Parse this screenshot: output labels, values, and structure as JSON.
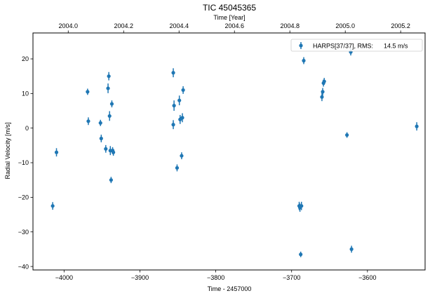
{
  "chart_data": {
    "type": "scatter",
    "title": "TIC 45045365",
    "xlabel": "Time - 2457000",
    "ylabel": "Radial Velocity [m/s]",
    "top_xlabel": "Time [Year]",
    "xlim": [
      -4041,
      -3524
    ],
    "ylim": [
      -41,
      27.5
    ],
    "x_ticks": [
      -4000,
      -3900,
      -3800,
      -3700,
      -3600
    ],
    "x_tick_labels": [
      "−4000",
      "−3900",
      "−3800",
      "−3700",
      "−3600"
    ],
    "y_ticks": [
      20,
      10,
      0,
      -10,
      -20,
      -30,
      -40
    ],
    "y_tick_labels": [
      "20",
      "10",
      "0",
      "−10",
      "−20",
      "−30",
      "−40"
    ],
    "top_ticks": [
      2004.0,
      2004.2,
      2004.4,
      2004.6,
      2004.8,
      2005.0,
      2005.2
    ],
    "top_tick_labels": [
      "2004.0",
      "2004.2",
      "2004.4",
      "2004.6",
      "2004.8",
      "2005.0",
      "2005.2"
    ],
    "legend_position": "top-right",
    "grid": false,
    "series": [
      {
        "name": "HARPS[37/37], RMS:      14.5 m/s",
        "color": "#1f77b4",
        "points": [
          {
            "x": -4015,
            "y": -22.5,
            "err": 1.1
          },
          {
            "x": -4010,
            "y": -7.0,
            "err": 1.2
          },
          {
            "x": -3969,
            "y": 10.5,
            "err": 0.9
          },
          {
            "x": -3968,
            "y": 2.0,
            "err": 1.1
          },
          {
            "x": -3952,
            "y": 1.5,
            "err": 0.9
          },
          {
            "x": -3951,
            "y": -3.0,
            "err": 1.1
          },
          {
            "x": -3945,
            "y": -6.0,
            "err": 1.1
          },
          {
            "x": -3942,
            "y": 11.5,
            "err": 1.4
          },
          {
            "x": -3941,
            "y": 15.0,
            "err": 1.2
          },
          {
            "x": -3940,
            "y": 3.5,
            "err": 1.4
          },
          {
            "x": -3939,
            "y": -6.5,
            "err": 1.3
          },
          {
            "x": -3938,
            "y": -15.0,
            "err": 0.9
          },
          {
            "x": -3937,
            "y": 7.0,
            "err": 1.0
          },
          {
            "x": -3936,
            "y": -6.5,
            "err": 1.0
          },
          {
            "x": -3935,
            "y": -7.0,
            "err": 1.0
          },
          {
            "x": -3856,
            "y": 16.0,
            "err": 1.3
          },
          {
            "x": -3856,
            "y": 1.0,
            "err": 1.3
          },
          {
            "x": -3855,
            "y": 6.5,
            "err": 1.5
          },
          {
            "x": -3851,
            "y": -11.5,
            "err": 1.0
          },
          {
            "x": -3848,
            "y": 8.0,
            "err": 1.4
          },
          {
            "x": -3847,
            "y": 2.5,
            "err": 1.3
          },
          {
            "x": -3845,
            "y": -8.0,
            "err": 1.0
          },
          {
            "x": -3844,
            "y": 3.0,
            "err": 1.3
          },
          {
            "x": -3843,
            "y": 11.0,
            "err": 1.1
          },
          {
            "x": -3690,
            "y": -22.5,
            "err": 1.2
          },
          {
            "x": -3689,
            "y": -23.0,
            "err": 1.2
          },
          {
            "x": -3688,
            "y": -36.5,
            "err": 0.8
          },
          {
            "x": -3687,
            "y": -22.5,
            "err": 1.2
          },
          {
            "x": -3684,
            "y": 19.5,
            "err": 1.0
          },
          {
            "x": -3660,
            "y": 9.0,
            "err": 1.2
          },
          {
            "x": -3659,
            "y": 10.5,
            "err": 1.1
          },
          {
            "x": -3658,
            "y": 13.0,
            "err": 1.0
          },
          {
            "x": -3657,
            "y": 13.5,
            "err": 1.0
          },
          {
            "x": -3627,
            "y": -2.0,
            "err": 0.8
          },
          {
            "x": -3622,
            "y": 22.0,
            "err": 1.0
          },
          {
            "x": -3621,
            "y": -35.0,
            "err": 1.0
          },
          {
            "x": -3535,
            "y": 0.5,
            "err": 1.2
          }
        ]
      }
    ]
  }
}
